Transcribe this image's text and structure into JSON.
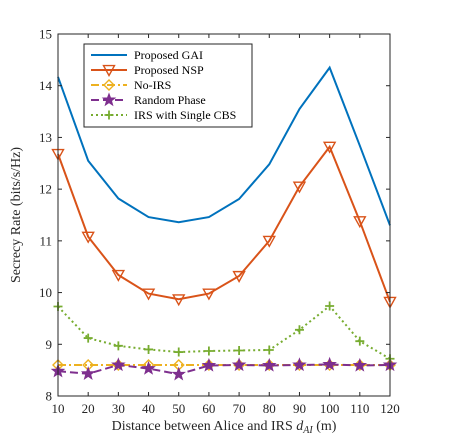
{
  "chart_data": {
    "type": "line",
    "title": "",
    "xlabel": "Distance between Alice and IRS ",
    "xlabel_symbol": "d",
    "xlabel_subscript": "AI",
    "xlabel_unit": " (m)",
    "ylabel": "Secrecy Rate (bits/s/Hz)",
    "xlim": [
      10,
      120
    ],
    "ylim": [
      8,
      15
    ],
    "xticks": [
      "10",
      "20",
      "30",
      "40",
      "50",
      "60",
      "70",
      "80",
      "90",
      "100",
      "110",
      "120"
    ],
    "yticks": [
      "8",
      "9",
      "10",
      "11",
      "12",
      "13",
      "14",
      "15"
    ],
    "grid": false,
    "legend_position": "top-left",
    "x": [
      10,
      20,
      30,
      40,
      50,
      60,
      70,
      80,
      90,
      100,
      110,
      120
    ],
    "series": [
      {
        "name": "Proposed GAI",
        "color": "#0072BD",
        "marker": "none",
        "dash": "solid",
        "values": [
          14.17,
          12.55,
          11.82,
          11.46,
          11.36,
          11.46,
          11.81,
          12.48,
          13.55,
          14.35,
          12.84,
          11.3
        ]
      },
      {
        "name": "Proposed NSP",
        "color": "#D95319",
        "marker": "triangle-down",
        "dash": "solid",
        "values": [
          12.68,
          11.08,
          10.34,
          9.98,
          9.87,
          9.98,
          10.32,
          11.0,
          12.05,
          12.82,
          11.38,
          9.82
        ]
      },
      {
        "name": "No-IRS",
        "color": "#EDB120",
        "marker": "diamond",
        "dash": "dashdot",
        "values": [
          8.6,
          8.6,
          8.6,
          8.6,
          8.6,
          8.6,
          8.6,
          8.6,
          8.6,
          8.6,
          8.6,
          8.6
        ]
      },
      {
        "name": "Random Phase",
        "color": "#7E2F8E",
        "marker": "star",
        "dash": "dashed",
        "values": [
          8.48,
          8.43,
          8.6,
          8.53,
          8.42,
          8.59,
          8.6,
          8.59,
          8.6,
          8.61,
          8.59,
          8.6
        ]
      },
      {
        "name": "IRS with Single CBS",
        "color": "#77AC30",
        "marker": "plus",
        "dash": "dotted",
        "values": [
          9.73,
          9.12,
          8.97,
          8.9,
          8.85,
          8.87,
          8.88,
          8.89,
          9.28,
          9.74,
          9.06,
          8.72
        ]
      }
    ]
  }
}
